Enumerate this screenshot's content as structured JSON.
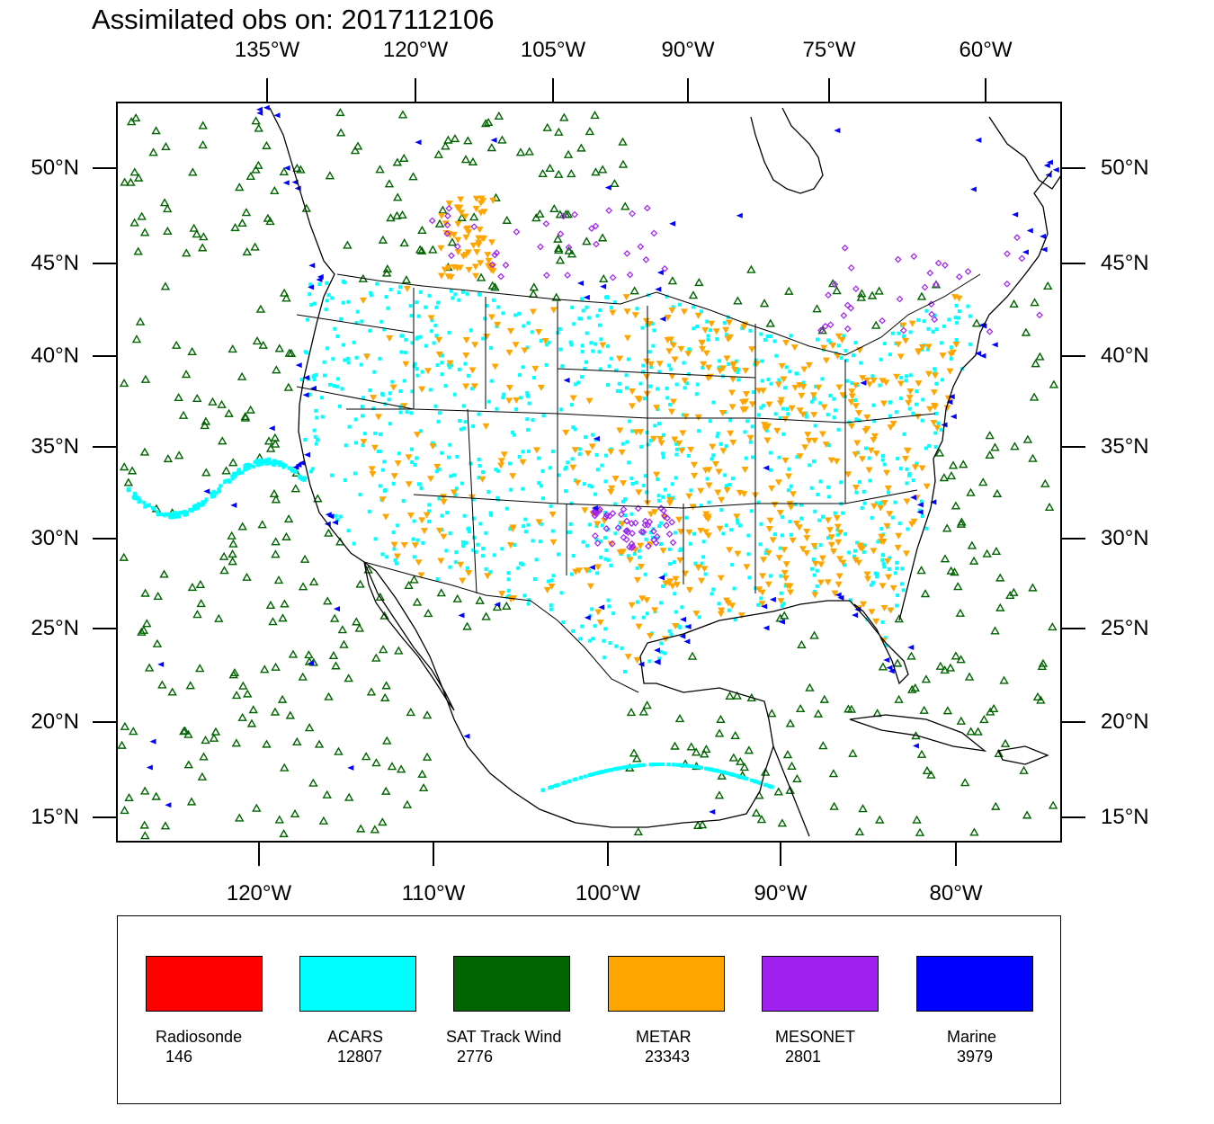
{
  "title": "Assimilated obs on: 2017112106",
  "top_axis_labels": [
    "135°W",
    "120°W",
    "105°W",
    "90°W",
    "75°W",
    "60°W"
  ],
  "bottom_axis_labels": [
    "120°W",
    "110°W",
    "100°W",
    "90°W",
    "80°W"
  ],
  "lat_labels": [
    "50°N",
    "45°N",
    "40°N",
    "35°N",
    "30°N",
    "25°N",
    "20°N",
    "15°N"
  ],
  "legend": [
    {
      "name": "Radiosonde",
      "count": "146",
      "color": "#ff0000"
    },
    {
      "name": "ACARS",
      "count": "12807",
      "color": "#00ffff"
    },
    {
      "name": "SAT Track Wind",
      "count": "2776",
      "color": "#006400"
    },
    {
      "name": "METAR",
      "count": "23343",
      "color": "#ffa500"
    },
    {
      "name": "MESONET",
      "count": "2801",
      "color": "#a020f0"
    },
    {
      "name": "Marine",
      "count": "3979",
      "color": "#0000ff"
    }
  ],
  "colors": {
    "acars": "#00ffff",
    "sat_wind": "#006400",
    "metar": "#ffa500",
    "mesonet": "#a020f0",
    "marine": "#0000ff",
    "coast": "#000000"
  }
}
